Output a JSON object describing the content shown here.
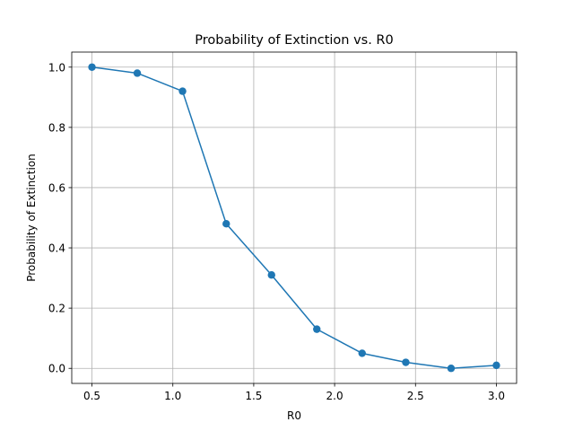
{
  "chart_data": {
    "type": "line",
    "title": "Probability of Extinction vs. R0",
    "xlabel": "R0",
    "ylabel": "Probability of Extinction",
    "xlim": [
      0.375,
      3.125
    ],
    "ylim": [
      -0.05,
      1.05
    ],
    "xticks": [
      0.5,
      1.0,
      1.5,
      2.0,
      2.5,
      3.0
    ],
    "xtick_labels": [
      "0.5",
      "1.0",
      "1.5",
      "2.0",
      "2.5",
      "3.0"
    ],
    "yticks": [
      0.0,
      0.2,
      0.4,
      0.6,
      0.8,
      1.0
    ],
    "ytick_labels": [
      "0.0",
      "0.2",
      "0.4",
      "0.6",
      "0.8",
      "1.0"
    ],
    "grid": true,
    "line_color": "#1f77b4",
    "marker": "circle",
    "series": [
      {
        "x": [
          0.5,
          0.78,
          1.06,
          1.33,
          1.61,
          1.89,
          2.17,
          2.44,
          2.72,
          3.0
        ],
        "y": [
          1.0,
          0.98,
          0.92,
          0.48,
          0.31,
          0.13,
          0.05,
          0.02,
          0.0,
          0.01
        ]
      }
    ]
  }
}
